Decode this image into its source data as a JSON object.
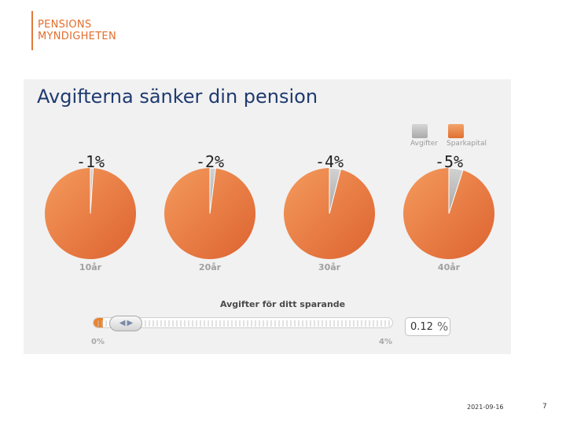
{
  "logo": {
    "line1": "PENSIONS",
    "line2": "MYNDIGHETEN"
  },
  "slide": {
    "title": "Avgifterna sänker din pension"
  },
  "colors": {
    "fee": "#b9b9b9",
    "capital": "#e8793d",
    "accent": "#e36d2c",
    "title": "#1f3a70"
  },
  "chart_data": {
    "type": "pie",
    "legend": [
      "Avgifter",
      "Sparkapital"
    ],
    "pies": [
      {
        "label": "-1%",
        "year": "10år",
        "fee_pct": 1,
        "capital_pct": 99
      },
      {
        "label": "-2%",
        "year": "20år",
        "fee_pct": 2,
        "capital_pct": 98
      },
      {
        "label": "-4%",
        "year": "30år",
        "fee_pct": 4,
        "capital_pct": 96
      },
      {
        "label": "-5%",
        "year": "40år",
        "fee_pct": 5,
        "capital_pct": 95
      }
    ]
  },
  "slider": {
    "title": "Avgifter för ditt sparande",
    "min_label": "0%",
    "max_label": "4%",
    "min": 0,
    "max": 4,
    "value": 0.12,
    "value_text": "0.12",
    "unit": "%"
  },
  "footer": {
    "date": "2021-09-16",
    "page": "7"
  }
}
